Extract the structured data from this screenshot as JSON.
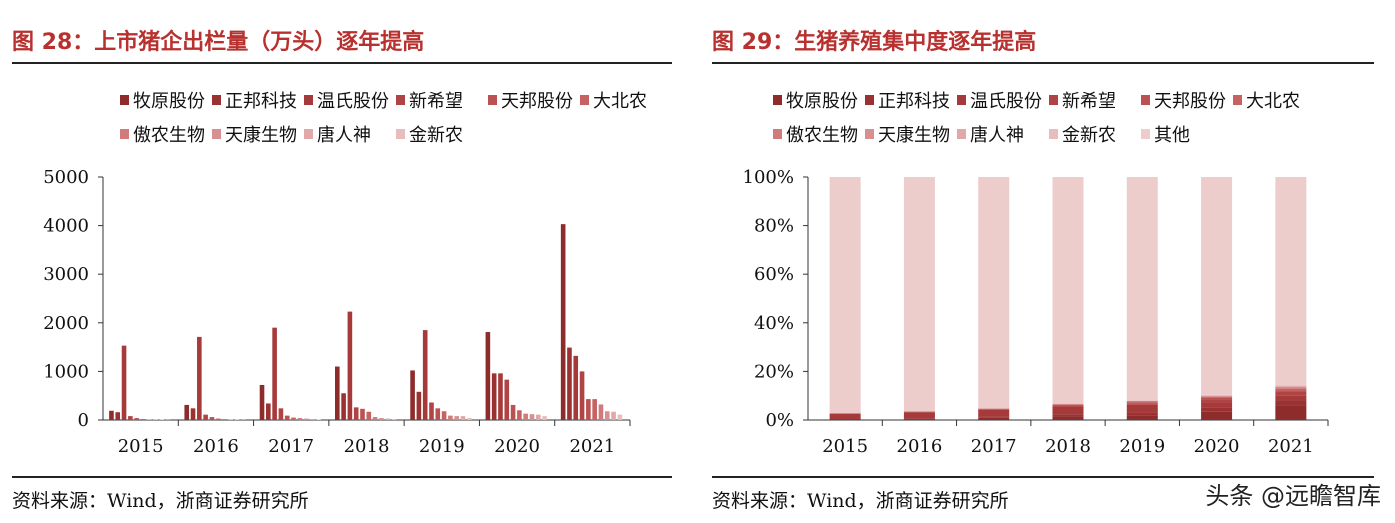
{
  "left": {
    "title": "图 28：上市猪企出栏量（万头）逐年提高",
    "source": "资料来源：Wind，浙商证券研究所"
  },
  "right": {
    "title": "图 29：生猪养殖集中度逐年提高",
    "source": "资料来源：Wind，浙商证券研究所"
  },
  "watermark": "头条 @远瞻智库",
  "colors": [
    "#8e2b2b",
    "#9a3232",
    "#a63a3a",
    "#b04444",
    "#bb5252",
    "#c66262",
    "#d07a7a",
    "#d88f8f",
    "#e1a8a8",
    "#e8bdbd",
    "#edcccc"
  ],
  "chart_data": [
    {
      "type": "bar",
      "categories": [
        "2015",
        "2016",
        "2017",
        "2018",
        "2019",
        "2020",
        "2021"
      ],
      "ylim": [
        0,
        5000
      ],
      "yticks": [
        "0",
        "1000",
        "2000",
        "3000",
        "4000",
        "5000"
      ],
      "series": [
        {
          "name": "牧原股份",
          "values": [
            190,
            310,
            720,
            1100,
            1020,
            1810,
            4030
          ]
        },
        {
          "name": "正邦科技",
          "values": [
            160,
            240,
            340,
            550,
            580,
            960,
            1490
          ]
        },
        {
          "name": "温氏股份",
          "values": [
            1530,
            1710,
            1900,
            2230,
            1850,
            960,
            1320
          ]
        },
        {
          "name": "新希望",
          "values": [
            80,
            110,
            240,
            260,
            360,
            830,
            1000
          ]
        },
        {
          "name": "天邦股份",
          "values": [
            40,
            60,
            90,
            230,
            240,
            310,
            430
          ]
        },
        {
          "name": "大北农",
          "values": [
            20,
            30,
            50,
            170,
            180,
            200,
            430
          ]
        },
        {
          "name": "傲农生物",
          "values": [
            10,
            20,
            40,
            60,
            90,
            130,
            320
          ]
        },
        {
          "name": "天康生物",
          "values": [
            10,
            10,
            30,
            40,
            80,
            120,
            180
          ]
        },
        {
          "name": "唐人神",
          "values": [
            10,
            10,
            20,
            30,
            80,
            110,
            170
          ]
        },
        {
          "name": "金新农",
          "values": [
            5,
            5,
            10,
            20,
            40,
            80,
            110
          ]
        }
      ]
    },
    {
      "type": "bar",
      "stacked": true,
      "categories": [
        "2015",
        "2016",
        "2017",
        "2018",
        "2019",
        "2020",
        "2021"
      ],
      "ylim": [
        0,
        100
      ],
      "yticks": [
        "0%",
        "20%",
        "40%",
        "60%",
        "80%",
        "100%"
      ],
      "series": [
        {
          "name": "牧原股份",
          "values": [
            0.2,
            0.4,
            0.9,
            1.6,
            1.8,
            3.4,
            6.0
          ]
        },
        {
          "name": "正邦科技",
          "values": [
            0.2,
            0.3,
            0.5,
            0.8,
            1.1,
            1.8,
            2.2
          ]
        },
        {
          "name": "温氏股份",
          "values": [
            2.2,
            2.5,
            2.8,
            3.2,
            3.4,
            1.8,
            2.0
          ]
        },
        {
          "name": "新希望",
          "values": [
            0.1,
            0.2,
            0.3,
            0.4,
            0.6,
            1.6,
            1.5
          ]
        },
        {
          "name": "天邦股份",
          "values": [
            0.1,
            0.1,
            0.1,
            0.3,
            0.4,
            0.6,
            0.6
          ]
        },
        {
          "name": "大北农",
          "values": [
            0.0,
            0.0,
            0.1,
            0.2,
            0.3,
            0.4,
            0.6
          ]
        },
        {
          "name": "傲农生物",
          "values": [
            0.0,
            0.0,
            0.1,
            0.1,
            0.2,
            0.2,
            0.5
          ]
        },
        {
          "name": "天康生物",
          "values": [
            0.0,
            0.0,
            0.0,
            0.1,
            0.1,
            0.2,
            0.3
          ]
        },
        {
          "name": "唐人神",
          "values": [
            0.0,
            0.0,
            0.0,
            0.0,
            0.1,
            0.2,
            0.3
          ]
        },
        {
          "name": "金新农",
          "values": [
            0.0,
            0.0,
            0.0,
            0.0,
            0.1,
            0.2,
            0.2
          ]
        },
        {
          "name": "其他",
          "values": [
            97.2,
            96.5,
            95.2,
            93.3,
            91.9,
            89.6,
            85.8
          ]
        }
      ]
    }
  ]
}
